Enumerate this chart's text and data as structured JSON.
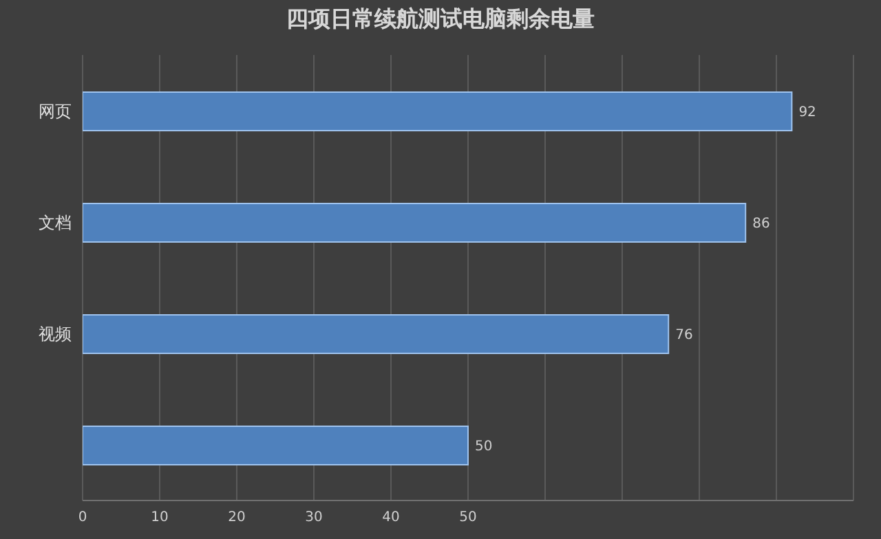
{
  "chart_data": {
    "type": "bar",
    "title": "四项日常续航测试电脑剩余电量",
    "orientation": "horizontal",
    "categories": [
      "网页",
      "文档",
      "视频",
      null
    ],
    "values": [
      92,
      86,
      76,
      50
    ],
    "color": "#4f81bd",
    "data_labels": true,
    "grid": "x",
    "xlim": [
      0,
      100
    ],
    "xticks": [
      0,
      10,
      20,
      30,
      40,
      50,
      {
        "value": 60,
        "label": null
      },
      {
        "value": 70,
        "label": null
      },
      {
        "value": 80,
        "label": null
      },
      {
        "value": 90,
        "label": null
      },
      {
        "value": 100,
        "label": null
      }
    ]
  }
}
